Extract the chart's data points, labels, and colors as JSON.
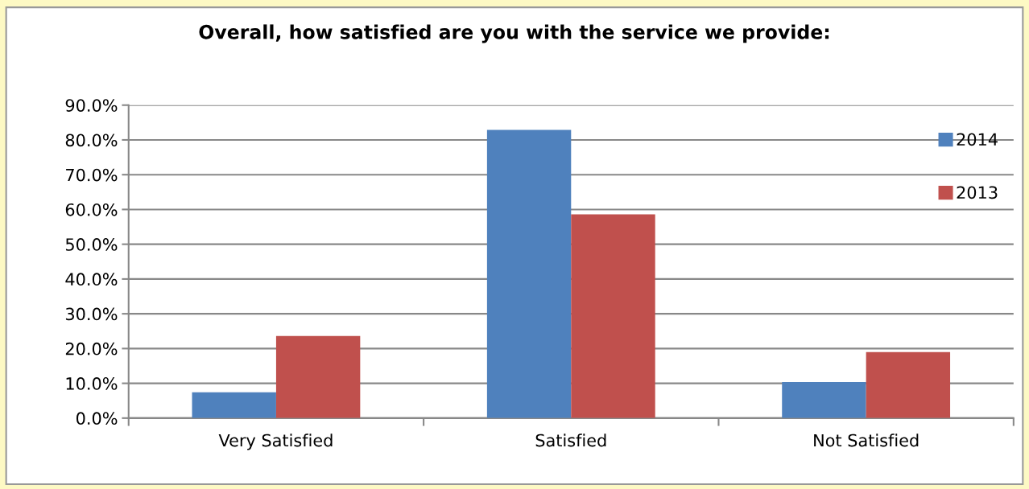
{
  "chart_data": {
    "type": "bar",
    "title": "Overall, how satisfied are you with the service we provide:",
    "categories": [
      "Very Satisfied",
      "Satisfied",
      "Not Satisfied"
    ],
    "series": [
      {
        "name": "2014",
        "color": "#4f81bd",
        "values": [
          7.4,
          82.9,
          10.4
        ]
      },
      {
        "name": "2013",
        "color": "#c0504d",
        "values": [
          23.6,
          58.6,
          19.0
        ]
      }
    ],
    "ylim": [
      0,
      90
    ],
    "yticks": [
      {
        "value": 0,
        "label": "0.0%"
      },
      {
        "value": 10,
        "label": "10.0%"
      },
      {
        "value": 20,
        "label": "20.0%"
      },
      {
        "value": 30,
        "label": "30.0%"
      },
      {
        "value": 40,
        "label": "40.0%"
      },
      {
        "value": 50,
        "label": "50.0%"
      },
      {
        "value": 60,
        "label": "60.0%"
      },
      {
        "value": 70,
        "label": "70.0%"
      },
      {
        "value": 80,
        "label": "80.0%"
      },
      {
        "value": 90,
        "label": "90.0%"
      }
    ],
    "grid": "y",
    "legend": "top right"
  }
}
